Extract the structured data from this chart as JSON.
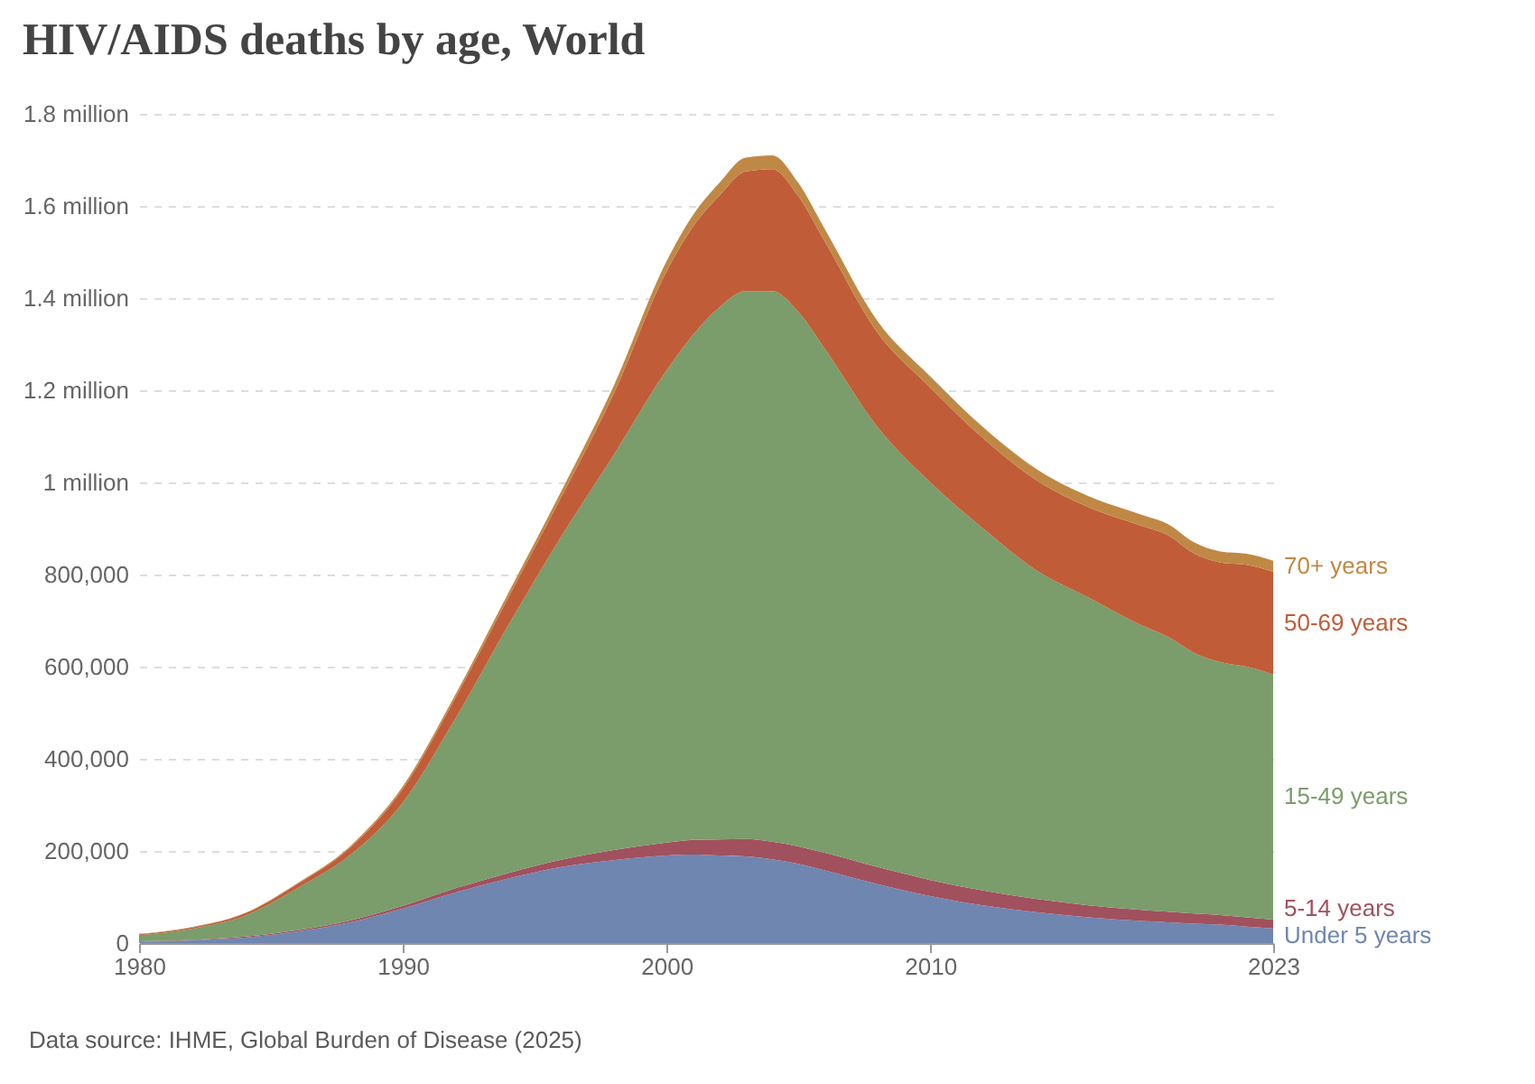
{
  "chart_data": {
    "type": "area",
    "stacked": true,
    "title": "HIV/AIDS deaths by age, World",
    "x": [
      1980,
      1982,
      1984,
      1986,
      1988,
      1990,
      1992,
      1994,
      1996,
      1998,
      2000,
      2001,
      2002,
      2003,
      2004,
      2005,
      2006,
      2008,
      2010,
      2012,
      2014,
      2016,
      2018,
      2019,
      2020,
      2021,
      2022,
      2023
    ],
    "series": [
      {
        "name": "Under 5 years",
        "color": "#6f86b0",
        "values": [
          3000,
          6000,
          12000,
          25000,
          45000,
          75000,
          110000,
          140000,
          165000,
          180000,
          190000,
          192000,
          190000,
          188000,
          182000,
          172000,
          158000,
          128000,
          102000,
          82000,
          67000,
          56000,
          48000,
          45000,
          42000,
          40000,
          36000,
          32000
        ]
      },
      {
        "name": "5-14 years",
        "color": "#a1505e",
        "values": [
          1000,
          1000,
          2000,
          3000,
          4000,
          6000,
          9000,
          12000,
          16000,
          22000,
          28000,
          32000,
          35000,
          38000,
          38000,
          38000,
          38000,
          37000,
          35000,
          32000,
          29000,
          26000,
          24000,
          23000,
          22000,
          21000,
          20000,
          19000
        ]
      },
      {
        "name": "15-49 years",
        "color": "#7b9c6b",
        "values": [
          13000,
          24000,
          45000,
          91000,
          142000,
          224000,
          369000,
          538000,
          701000,
          858000,
          1025000,
          1096000,
          1155000,
          1189000,
          1195000,
          1160000,
          1094000,
          955000,
          863000,
          786000,
          714000,
          668000,
          618000,
          597000,
          566000,
          549000,
          544000,
          532000
        ]
      },
      {
        "name": "50-69 years",
        "color": "#c05d38",
        "values": [
          2000,
          3000,
          5000,
          9000,
          16000,
          30000,
          45000,
          60000,
          85000,
          133000,
          215000,
          235000,
          242000,
          260000,
          265000,
          251000,
          233000,
          205000,
          206000,
          196000,
          196000,
          196000,
          216000,
          221000,
          216000,
          216000,
          221000,
          223000
        ]
      },
      {
        "name": "70+ years",
        "color": "#c08845",
        "values": [
          1000,
          1000,
          1000,
          2000,
          3000,
          5000,
          7000,
          10000,
          13000,
          17000,
          22000,
          25000,
          28000,
          30000,
          30000,
          29000,
          27000,
          25000,
          24000,
          24000,
          24000,
          24000,
          24000,
          24000,
          24000,
          24000,
          24000,
          24000
        ]
      }
    ],
    "xlim": [
      1980,
      2023
    ],
    "xticks": [
      1980,
      1990,
      2000,
      2010,
      2023
    ],
    "ylim": [
      0,
      1800000
    ],
    "yticks": [
      0,
      {
        "value": 200000,
        "label": "200,000"
      },
      {
        "value": 400000,
        "label": "400,000"
      },
      {
        "value": 600000,
        "label": "600,000"
      },
      {
        "value": 800000,
        "label": "800,000"
      },
      {
        "value": 1000000,
        "label": "1 million"
      },
      {
        "value": 1200000,
        "label": "1.2 million"
      },
      {
        "value": 1400000,
        "label": "1.4 million"
      },
      {
        "value": 1600000,
        "label": "1.6 million"
      },
      {
        "value": 1800000,
        "label": "1.8 million"
      }
    ],
    "grid": "y",
    "annotations": [
      "Data source: IHME, Global Burden of Disease (2025)"
    ]
  }
}
